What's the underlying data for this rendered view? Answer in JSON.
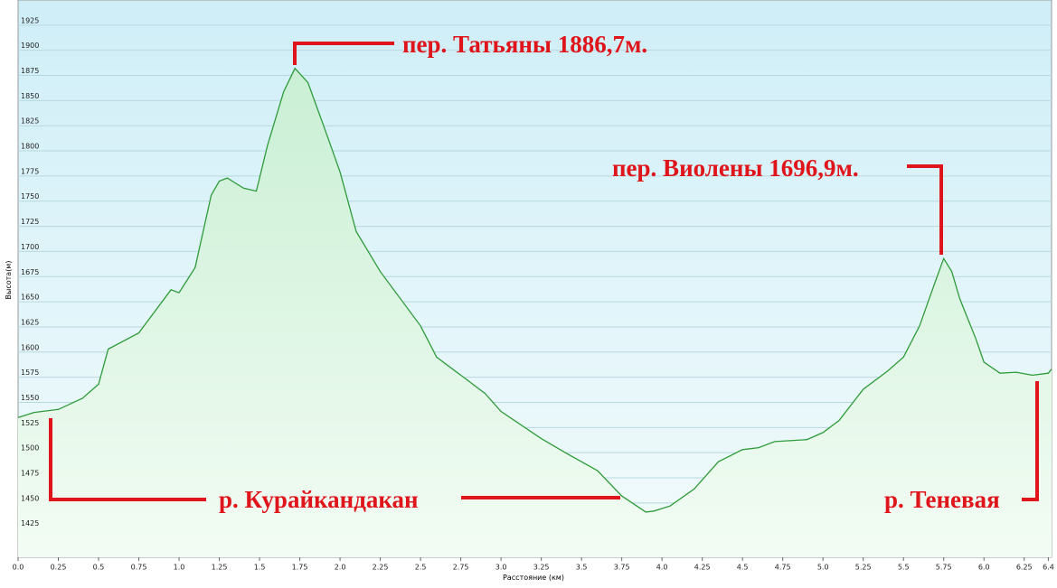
{
  "chart_data": {
    "type": "line",
    "x_label": "Расстояние  (км)",
    "y_label": "Высота(м)",
    "x": [
      0,
      0.1,
      0.25,
      0.4,
      0.5,
      0.56,
      0.75,
      0.95,
      1.0,
      1.1,
      1.2,
      1.25,
      1.3,
      1.4,
      1.48,
      1.55,
      1.65,
      1.72,
      1.8,
      1.9,
      2.0,
      2.1,
      2.25,
      2.5,
      2.6,
      2.75,
      2.9,
      3.0,
      3.25,
      3.4,
      3.6,
      3.75,
      3.9,
      3.95,
      4.05,
      4.2,
      4.35,
      4.5,
      4.6,
      4.7,
      4.9,
      5.0,
      5.1,
      5.25,
      5.4,
      5.5,
      5.6,
      5.7,
      5.75,
      5.8,
      5.85,
      5.95,
      6.0,
      6.1,
      6.2,
      6.3,
      6.4,
      6.42
    ],
    "series": [
      {
        "color": "#2e9a3a",
        "values": [
          1535,
          1540,
          1543,
          1554,
          1568,
          1603,
          1619,
          1662,
          1659,
          1684,
          1756,
          1770,
          1773,
          1763,
          1760,
          1806,
          1859,
          1882,
          1868,
          1824,
          1779,
          1720,
          1680,
          1626,
          1595,
          1577,
          1559,
          1541,
          1514,
          1500,
          1482,
          1457,
          1441,
          1442,
          1447,
          1464,
          1491,
          1503,
          1505,
          1511,
          1513,
          1520,
          1532,
          1563,
          1581,
          1595,
          1626,
          1671,
          1693,
          1680,
          1653,
          1613,
          1590,
          1579,
          1580,
          1577,
          1579,
          1583
        ]
      }
    ],
    "annotations": [
      "пер. Татьяны 1886,7м.",
      "пер. Виолены 1696,9м.",
      "р. Курайкандакан",
      "р. Теневая"
    ],
    "xlim": [
      0,
      6.42
    ],
    "ylim": [
      1396,
      1950
    ],
    "xticks": [
      {
        "value": 0,
        "label": "0.0"
      },
      0.25,
      0.5,
      0.75,
      {
        "value": 1,
        "label": "1.0"
      },
      1.25,
      1.5,
      1.75,
      {
        "value": 2,
        "label": "2.0"
      },
      2.25,
      2.5,
      2.75,
      {
        "value": 3,
        "label": "3.0"
      },
      3.25,
      3.5,
      3.75,
      {
        "value": 4,
        "label": "4.0"
      },
      4.25,
      4.5,
      4.75,
      {
        "value": 5,
        "label": "5.0"
      },
      5.25,
      5.5,
      5.75,
      {
        "value": 6,
        "label": "6.0"
      },
      6.25,
      6.4
    ],
    "yticks": [
      1425,
      1450,
      1475,
      1500,
      1525,
      1550,
      1575,
      1600,
      1625,
      1650,
      1675,
      1700,
      1725,
      1750,
      1775,
      1800,
      1825,
      1850,
      1875,
      1900,
      1925
    ],
    "grid": true
  }
}
